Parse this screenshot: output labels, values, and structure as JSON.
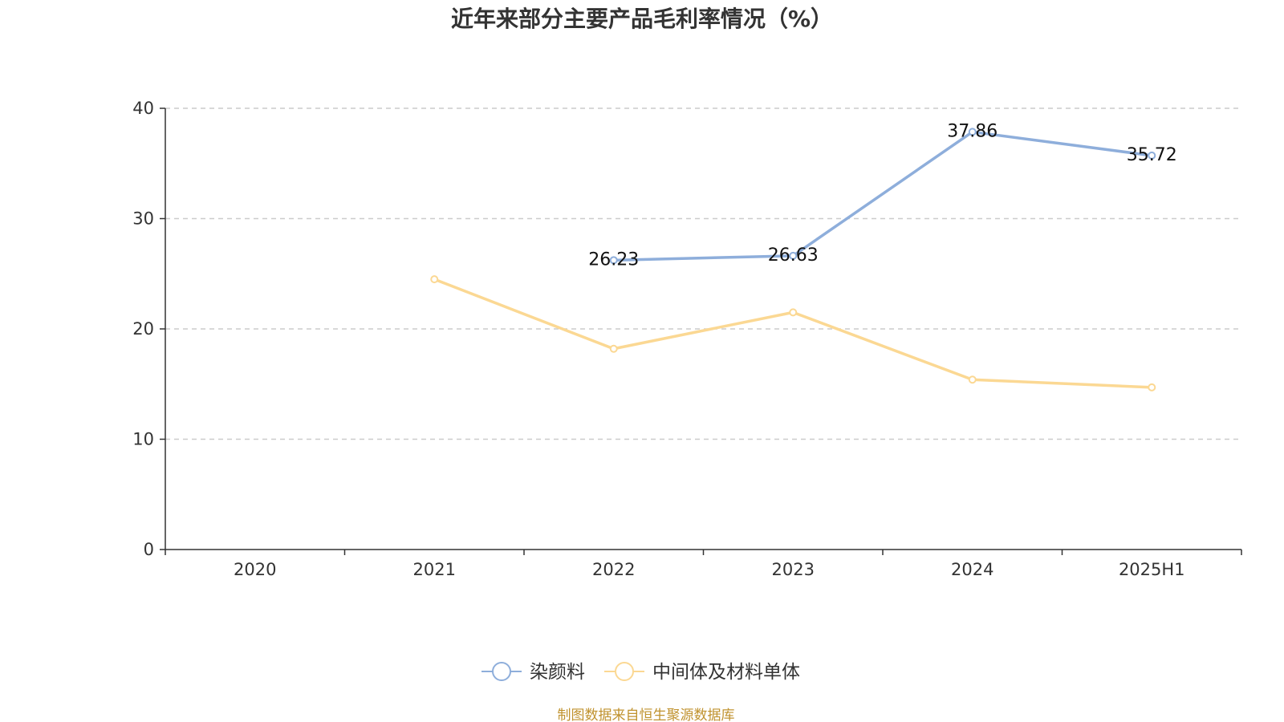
{
  "chart_data": {
    "type": "line",
    "title": "近年来部分主要产品毛利率情况（%）",
    "categories": [
      "2020",
      "2021",
      "2022",
      "2023",
      "2024",
      "2025H1"
    ],
    "ylim": [
      0,
      40
    ],
    "yticks": [
      0,
      10,
      20,
      30,
      40
    ],
    "grid": true,
    "legend_position": "bottom",
    "series": [
      {
        "name": "染颜料",
        "color": "#8eaedb",
        "values": [
          null,
          null,
          26.23,
          26.63,
          37.86,
          35.72
        ],
        "labels": [
          "",
          "",
          "26.23",
          "26.63",
          "37.86",
          "35.72"
        ]
      },
      {
        "name": "中间体及材料单体",
        "color": "#fbd893",
        "values": [
          null,
          24.5,
          18.2,
          21.5,
          15.4,
          14.7
        ],
        "labels": [
          "",
          "",
          "",
          "",
          "",
          ""
        ]
      }
    ],
    "source": "制图数据来自恒生聚源数据库"
  }
}
